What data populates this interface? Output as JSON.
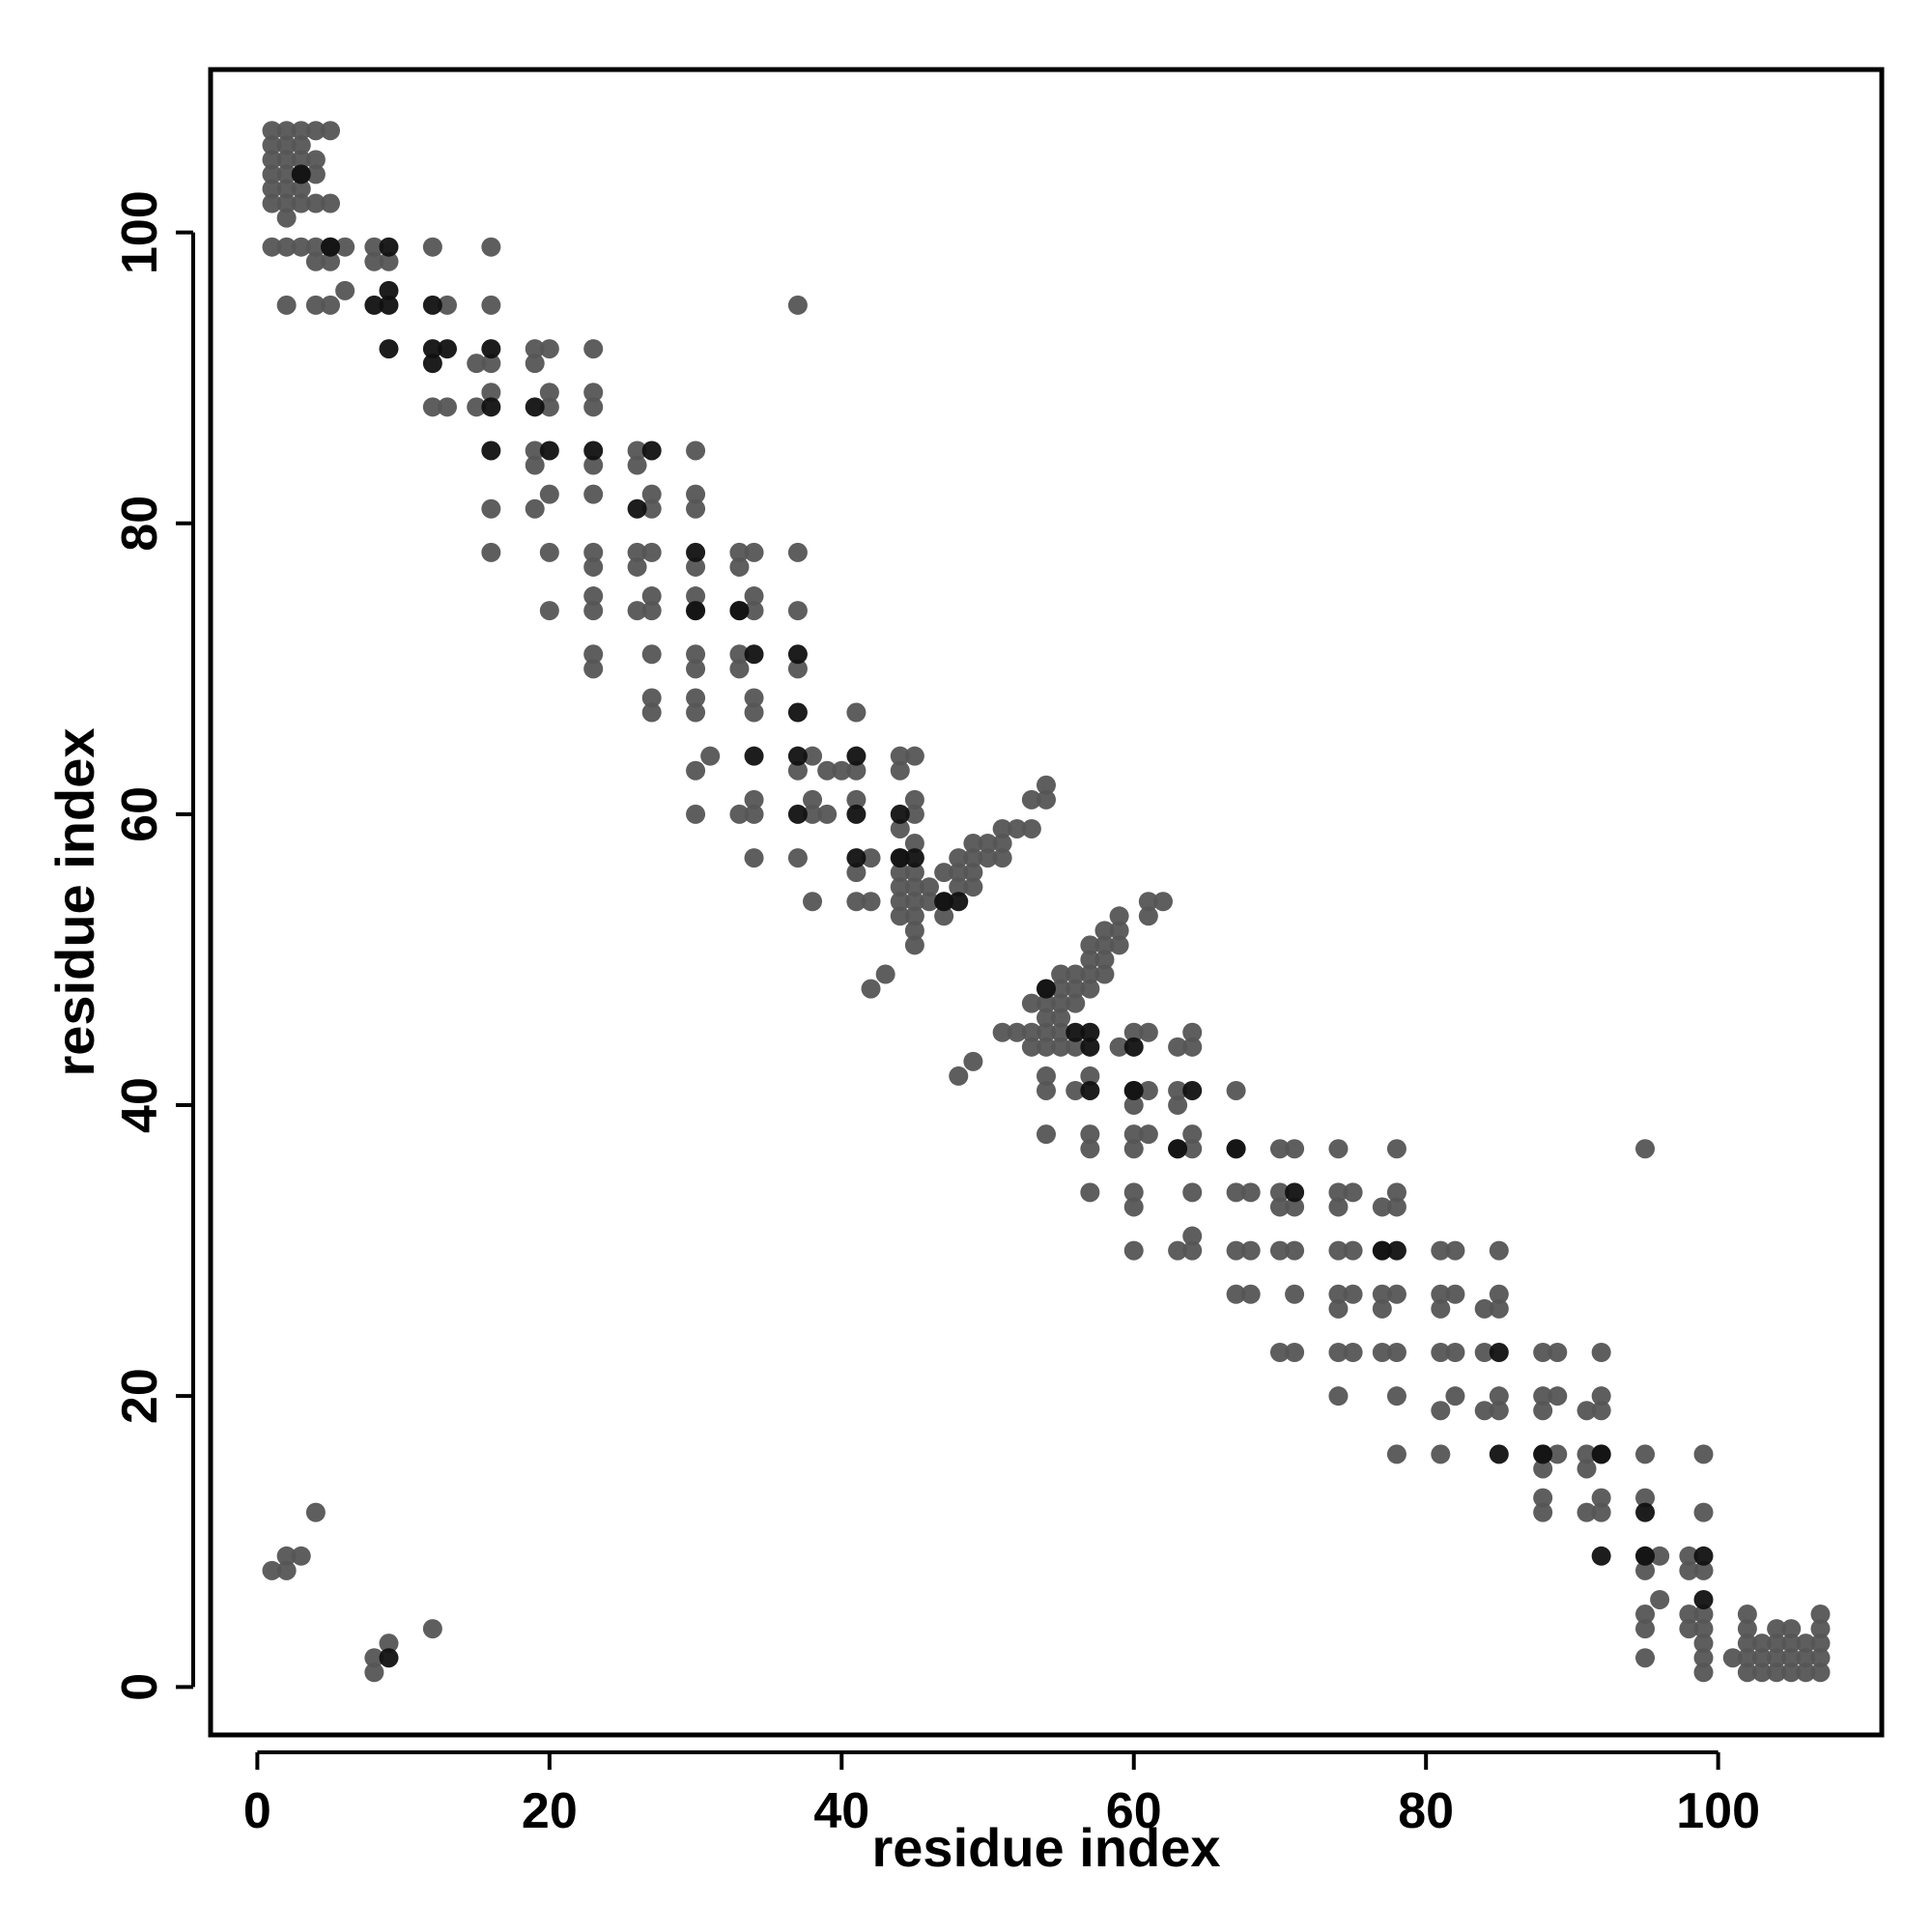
{
  "chart_data": {
    "type": "scatter",
    "title": "",
    "xlabel": "residue index",
    "ylabel": "residue index",
    "xlim": [
      -3.2,
      111.2
    ],
    "ylim": [
      -3.3,
      111.2
    ],
    "x_ticks": [
      0,
      20,
      40,
      60,
      80,
      100
    ],
    "y_ticks": [
      0,
      20,
      40,
      60,
      80,
      100
    ],
    "grid": false,
    "legend": "none",
    "point_fill": "#202020",
    "colors": {
      "light": "#555555",
      "mid": "#303030",
      "dark": "#111111"
    },
    "points_light": [
      [
        1,
        107
      ],
      [
        2,
        107
      ],
      [
        3,
        107
      ],
      [
        4,
        107
      ],
      [
        5,
        107
      ],
      [
        1,
        106
      ],
      [
        2,
        106
      ],
      [
        3,
        106
      ],
      [
        1,
        105
      ],
      [
        2,
        105
      ],
      [
        3,
        105
      ],
      [
        4,
        105
      ],
      [
        1,
        104
      ],
      [
        2,
        104
      ],
      [
        3,
        104
      ],
      [
        4,
        104
      ],
      [
        1,
        103
      ],
      [
        2,
        103
      ],
      [
        3,
        103
      ],
      [
        1,
        102
      ],
      [
        2,
        102
      ],
      [
        3,
        102
      ],
      [
        4,
        102
      ],
      [
        5,
        102
      ],
      [
        2,
        101
      ],
      [
        1,
        99
      ],
      [
        2,
        99
      ],
      [
        3,
        99
      ],
      [
        4,
        99
      ],
      [
        5,
        99
      ],
      [
        6,
        99
      ],
      [
        4,
        98
      ],
      [
        5,
        98
      ],
      [
        6,
        96
      ],
      [
        2,
        95
      ],
      [
        4,
        95
      ],
      [
        5,
        95
      ],
      [
        8,
        99
      ],
      [
        8,
        98
      ],
      [
        9,
        98
      ],
      [
        12,
        99
      ],
      [
        16,
        99
      ],
      [
        13,
        95
      ],
      [
        16,
        95
      ],
      [
        15,
        91
      ],
      [
        16,
        91
      ],
      [
        19,
        91
      ],
      [
        19,
        92
      ],
      [
        20,
        92
      ],
      [
        23,
        92
      ],
      [
        12,
        88
      ],
      [
        13,
        88
      ],
      [
        15,
        88
      ],
      [
        16,
        89
      ],
      [
        20,
        89
      ],
      [
        20,
        88
      ],
      [
        23,
        89
      ],
      [
        23,
        88
      ],
      [
        19,
        85
      ],
      [
        19,
        84
      ],
      [
        16,
        81
      ],
      [
        16,
        78
      ],
      [
        19,
        81
      ],
      [
        20,
        82
      ],
      [
        20,
        78
      ],
      [
        20,
        74
      ],
      [
        23,
        84
      ],
      [
        23,
        82
      ],
      [
        23,
        78
      ],
      [
        23,
        77
      ],
      [
        23,
        75
      ],
      [
        23,
        74
      ],
      [
        23,
        71
      ],
      [
        23,
        70
      ],
      [
        26,
        85
      ],
      [
        26,
        84
      ],
      [
        27,
        82
      ],
      [
        27,
        81
      ],
      [
        26,
        78
      ],
      [
        26,
        77
      ],
      [
        27,
        78
      ],
      [
        27,
        75
      ],
      [
        26,
        74
      ],
      [
        27,
        74
      ],
      [
        27,
        71
      ],
      [
        27,
        68
      ],
      [
        27,
        67
      ],
      [
        30,
        85
      ],
      [
        30,
        82
      ],
      [
        30,
        81
      ],
      [
        30,
        77
      ],
      [
        30,
        75
      ],
      [
        30,
        74
      ],
      [
        30,
        71
      ],
      [
        30,
        70
      ],
      [
        30,
        68
      ],
      [
        30,
        67
      ],
      [
        30,
        63
      ],
      [
        31,
        64
      ],
      [
        30,
        60
      ],
      [
        33,
        78
      ],
      [
        33,
        77
      ],
      [
        34,
        78
      ],
      [
        33,
        74
      ],
      [
        34,
        75
      ],
      [
        34,
        74
      ],
      [
        33,
        71
      ],
      [
        33,
        70
      ],
      [
        34,
        68
      ],
      [
        34,
        67
      ],
      [
        34,
        61
      ],
      [
        34,
        60
      ],
      [
        33,
        60
      ],
      [
        34,
        57
      ],
      [
        37,
        78
      ],
      [
        37,
        74
      ],
      [
        37,
        70
      ],
      [
        38,
        64
      ],
      [
        37,
        63
      ],
      [
        38,
        61
      ],
      [
        38,
        60
      ],
      [
        37,
        57
      ],
      [
        38,
        54
      ],
      [
        37,
        95
      ],
      [
        39,
        63
      ],
      [
        40,
        63
      ],
      [
        39,
        60
      ],
      [
        41,
        67
      ],
      [
        41,
        63
      ],
      [
        41,
        61
      ],
      [
        41,
        56
      ],
      [
        41,
        54
      ],
      [
        42,
        54
      ],
      [
        42,
        57
      ],
      [
        44,
        64
      ],
      [
        45,
        64
      ],
      [
        44,
        63
      ],
      [
        45,
        61
      ],
      [
        45,
        60
      ],
      [
        44,
        59
      ],
      [
        45,
        58
      ],
      [
        44,
        57
      ],
      [
        44,
        56
      ],
      [
        45,
        56
      ],
      [
        44,
        55
      ],
      [
        45,
        55
      ],
      [
        44,
        54
      ],
      [
        45,
        54
      ],
      [
        44,
        53
      ],
      [
        45,
        53
      ],
      [
        45,
        52
      ],
      [
        45,
        51
      ],
      [
        42,
        48
      ],
      [
        43,
        49
      ],
      [
        46,
        54
      ],
      [
        46,
        55
      ],
      [
        47,
        54
      ],
      [
        47,
        56
      ],
      [
        48,
        56
      ],
      [
        48,
        57
      ],
      [
        49,
        56
      ],
      [
        49,
        57
      ],
      [
        49,
        58
      ],
      [
        49,
        55
      ],
      [
        48,
        55
      ],
      [
        47,
        53
      ],
      [
        50,
        57
      ],
      [
        50,
        58
      ],
      [
        51,
        57
      ],
      [
        51,
        58
      ],
      [
        51,
        59
      ],
      [
        52,
        59
      ],
      [
        53,
        59
      ],
      [
        53,
        61
      ],
      [
        54,
        61
      ],
      [
        54,
        62
      ],
      [
        51,
        45
      ],
      [
        52,
        45
      ],
      [
        53,
        45
      ],
      [
        53,
        47
      ],
      [
        48,
        42
      ],
      [
        49,
        43
      ],
      [
        53,
        44
      ],
      [
        54,
        44
      ],
      [
        54,
        45
      ],
      [
        54,
        46
      ],
      [
        54,
        47
      ],
      [
        54,
        48
      ],
      [
        55,
        44
      ],
      [
        55,
        45
      ],
      [
        55,
        46
      ],
      [
        55,
        47
      ],
      [
        55,
        48
      ],
      [
        55,
        49
      ],
      [
        56,
        47
      ],
      [
        56,
        48
      ],
      [
        56,
        49
      ],
      [
        56,
        44
      ],
      [
        57,
        48
      ],
      [
        57,
        49
      ],
      [
        57,
        50
      ],
      [
        57,
        51
      ],
      [
        58,
        49
      ],
      [
        58,
        50
      ],
      [
        58,
        51
      ],
      [
        58,
        52
      ],
      [
        59,
        51
      ],
      [
        59,
        52
      ],
      [
        59,
        53
      ],
      [
        61,
        54
      ],
      [
        61,
        53
      ],
      [
        62,
        54
      ],
      [
        54,
        42
      ],
      [
        54,
        41
      ],
      [
        56,
        41
      ],
      [
        57,
        42
      ],
      [
        57,
        38
      ],
      [
        57,
        37
      ],
      [
        57,
        34
      ],
      [
        54,
        38
      ],
      [
        59,
        44
      ],
      [
        60,
        45
      ],
      [
        61,
        45
      ],
      [
        60,
        41
      ],
      [
        61,
        41
      ],
      [
        60,
        40
      ],
      [
        60,
        38
      ],
      [
        61,
        38
      ],
      [
        60,
        37
      ],
      [
        60,
        34
      ],
      [
        60,
        33
      ],
      [
        60,
        30
      ],
      [
        63,
        44
      ],
      [
        64,
        45
      ],
      [
        64,
        44
      ],
      [
        63,
        41
      ],
      [
        63,
        40
      ],
      [
        63,
        37
      ],
      [
        64,
        38
      ],
      [
        64,
        37
      ],
      [
        64,
        34
      ],
      [
        64,
        31
      ],
      [
        63,
        30
      ],
      [
        64,
        30
      ],
      [
        67,
        41
      ],
      [
        67,
        37
      ],
      [
        67,
        34
      ],
      [
        68,
        34
      ],
      [
        67,
        30
      ],
      [
        68,
        30
      ],
      [
        67,
        27
      ],
      [
        68,
        27
      ],
      [
        70,
        37
      ],
      [
        71,
        37
      ],
      [
        70,
        34
      ],
      [
        70,
        33
      ],
      [
        71,
        33
      ],
      [
        70,
        30
      ],
      [
        71,
        30
      ],
      [
        71,
        27
      ],
      [
        70,
        23
      ],
      [
        71,
        23
      ],
      [
        74,
        37
      ],
      [
        74,
        34
      ],
      [
        75,
        34
      ],
      [
        74,
        33
      ],
      [
        74,
        30
      ],
      [
        75,
        30
      ],
      [
        74,
        27
      ],
      [
        75,
        27
      ],
      [
        74,
        26
      ],
      [
        74,
        23
      ],
      [
        75,
        23
      ],
      [
        74,
        20
      ],
      [
        77,
        33
      ],
      [
        78,
        37
      ],
      [
        78,
        34
      ],
      [
        78,
        33
      ],
      [
        77,
        30
      ],
      [
        77,
        27
      ],
      [
        78,
        27
      ],
      [
        77,
        26
      ],
      [
        77,
        23
      ],
      [
        78,
        23
      ],
      [
        78,
        20
      ],
      [
        78,
        16
      ],
      [
        81,
        30
      ],
      [
        82,
        30
      ],
      [
        81,
        27
      ],
      [
        82,
        27
      ],
      [
        81,
        26
      ],
      [
        81,
        23
      ],
      [
        82,
        23
      ],
      [
        81,
        19
      ],
      [
        82,
        20
      ],
      [
        81,
        16
      ],
      [
        84,
        26
      ],
      [
        85,
        27
      ],
      [
        85,
        26
      ],
      [
        84,
        23
      ],
      [
        85,
        30
      ],
      [
        84,
        19
      ],
      [
        85,
        20
      ],
      [
        85,
        19
      ],
      [
        88,
        23
      ],
      [
        89,
        23
      ],
      [
        88,
        20
      ],
      [
        89,
        20
      ],
      [
        88,
        19
      ],
      [
        88,
        16
      ],
      [
        89,
        16
      ],
      [
        88,
        15
      ],
      [
        88,
        13
      ],
      [
        88,
        12
      ],
      [
        91,
        19
      ],
      [
        92,
        19
      ],
      [
        92,
        20
      ],
      [
        91,
        16
      ],
      [
        91,
        15
      ],
      [
        92,
        16
      ],
      [
        92,
        23
      ],
      [
        91,
        12
      ],
      [
        92,
        13
      ],
      [
        92,
        12
      ],
      [
        95,
        16
      ],
      [
        95,
        13
      ],
      [
        95,
        37
      ],
      [
        95,
        9
      ],
      [
        96,
        9
      ],
      [
        95,
        8
      ],
      [
        96,
        6
      ],
      [
        95,
        5
      ],
      [
        95,
        4
      ],
      [
        95,
        2
      ],
      [
        98,
        9
      ],
      [
        98,
        8
      ],
      [
        99,
        8
      ],
      [
        98,
        5
      ],
      [
        99,
        5
      ],
      [
        98,
        4
      ],
      [
        99,
        4
      ],
      [
        99,
        3
      ],
      [
        99,
        2
      ],
      [
        99,
        1
      ],
      [
        99,
        12
      ],
      [
        99,
        16
      ],
      [
        101,
        2
      ],
      [
        102,
        5
      ],
      [
        102,
        4
      ],
      [
        102,
        3
      ],
      [
        102,
        2
      ],
      [
        102,
        1
      ],
      [
        103,
        3
      ],
      [
        103,
        2
      ],
      [
        103,
        1
      ],
      [
        104,
        4
      ],
      [
        104,
        3
      ],
      [
        104,
        2
      ],
      [
        104,
        1
      ],
      [
        105,
        4
      ],
      [
        105,
        3
      ],
      [
        105,
        2
      ],
      [
        105,
        1
      ],
      [
        106,
        3
      ],
      [
        106,
        2
      ],
      [
        106,
        1
      ],
      [
        107,
        5
      ],
      [
        107,
        4
      ],
      [
        107,
        3
      ],
      [
        107,
        2
      ],
      [
        107,
        1
      ],
      [
        1,
        8
      ],
      [
        2,
        8
      ],
      [
        2,
        9
      ],
      [
        3,
        9
      ],
      [
        4,
        12
      ],
      [
        8,
        2
      ],
      [
        8,
        1
      ],
      [
        9,
        3
      ],
      [
        12,
        4
      ]
    ],
    "points_dark": [
      [
        9,
        99
      ],
      [
        9,
        96
      ],
      [
        8,
        95
      ],
      [
        9,
        95
      ],
      [
        9,
        92
      ],
      [
        12,
        95
      ],
      [
        12,
        92
      ],
      [
        13,
        92
      ],
      [
        12,
        91
      ],
      [
        16,
        92
      ],
      [
        16,
        88
      ],
      [
        19,
        88
      ],
      [
        16,
        85
      ],
      [
        20,
        85
      ],
      [
        23,
        85
      ],
      [
        26,
        81
      ],
      [
        27,
        85
      ],
      [
        30,
        78
      ],
      [
        30,
        74
      ],
      [
        33,
        74
      ],
      [
        34,
        71
      ],
      [
        34,
        64
      ],
      [
        37,
        71
      ],
      [
        37,
        67
      ],
      [
        37,
        64
      ],
      [
        37,
        60
      ],
      [
        41,
        64
      ],
      [
        41,
        60
      ],
      [
        41,
        57
      ],
      [
        44,
        60
      ],
      [
        44,
        57
      ],
      [
        45,
        57
      ],
      [
        47,
        54
      ],
      [
        48,
        54
      ],
      [
        54,
        48
      ],
      [
        56,
        45
      ],
      [
        57,
        45
      ],
      [
        57,
        44
      ],
      [
        57,
        41
      ],
      [
        60,
        44
      ],
      [
        60,
        41
      ],
      [
        63,
        37
      ],
      [
        64,
        41
      ],
      [
        67,
        37
      ],
      [
        71,
        34
      ],
      [
        77,
        30
      ],
      [
        78,
        30
      ],
      [
        85,
        23
      ],
      [
        85,
        16
      ],
      [
        88,
        16
      ],
      [
        92,
        16
      ],
      [
        92,
        9
      ],
      [
        95,
        12
      ],
      [
        95,
        9
      ],
      [
        99,
        9
      ],
      [
        99,
        6
      ],
      [
        9,
        2
      ],
      [
        3,
        104
      ],
      [
        5,
        99
      ]
    ]
  }
}
